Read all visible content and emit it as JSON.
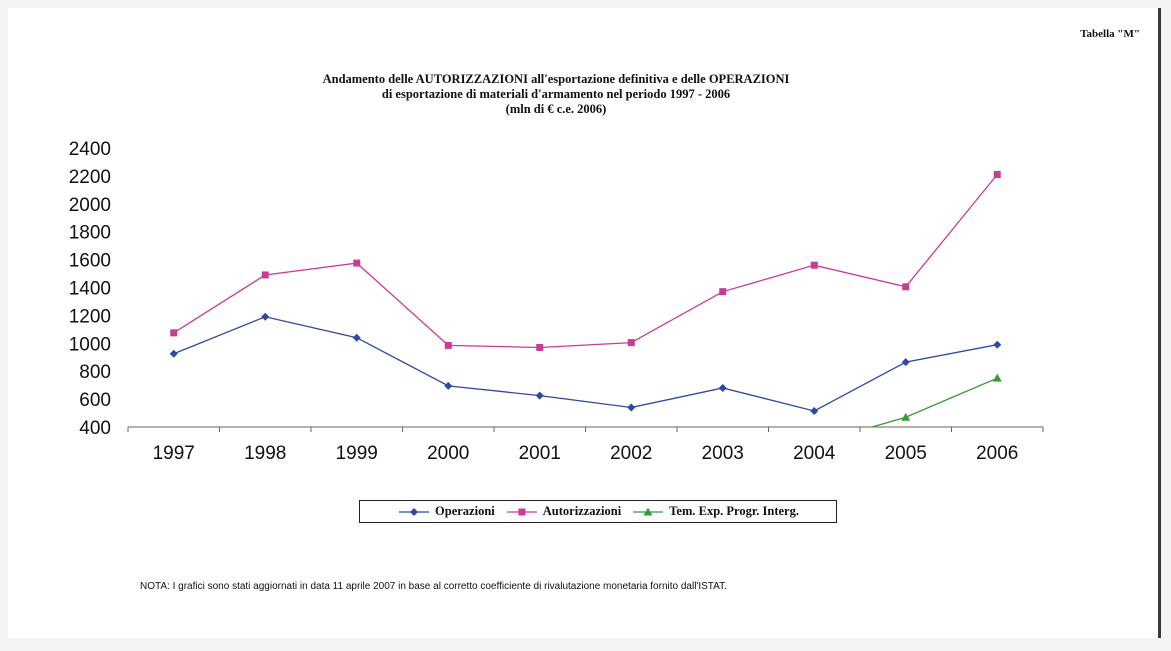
{
  "header": {
    "tabella": "Tabella \"M\""
  },
  "chart_data": {
    "type": "line",
    "title": "Andamento delle AUTORIZZAZIONI all'esportazione definitiva e delle OPERAZIONI",
    "subtitle": "di esportazione di materiali d'armamento nel periodo 1997 - 2006",
    "unit": "(mln di € c.e. 2006)",
    "categories": [
      "1997",
      "1998",
      "1999",
      "2000",
      "2001",
      "2002",
      "2003",
      "2004",
      "2005",
      "2006"
    ],
    "y_ticks": [
      "400",
      "600",
      "800",
      "1000",
      "1200",
      "1400",
      "1600",
      "1800",
      "2000",
      "2200",
      "2400"
    ],
    "ylim": [
      400,
      2400
    ],
    "legend_placement": "bottom",
    "series": [
      {
        "name": "Operazioni",
        "color": "#2b4aa0",
        "marker": "diamond",
        "values": [
          925,
          1190,
          1040,
          695,
          625,
          540,
          680,
          515,
          865,
          990
        ]
      },
      {
        "name": "Autorizzazioni",
        "color": "#c83c96",
        "marker": "square",
        "values": [
          1075,
          1490,
          1575,
          985,
          970,
          1005,
          1370,
          1560,
          1405,
          2210
        ]
      },
      {
        "name": "Tem. Exp. Progr. Interg.",
        "color": "#3a9a3a",
        "marker": "triangle",
        "values": [
          null,
          null,
          null,
          null,
          null,
          null,
          null,
          280,
          470,
          750
        ]
      }
    ]
  },
  "note": "NOTA: I grafici sono stati aggiornati in data 11 aprile 2007 in base al corretto coefficiente di rivalutazione monetaria fornito dall'ISTAT."
}
